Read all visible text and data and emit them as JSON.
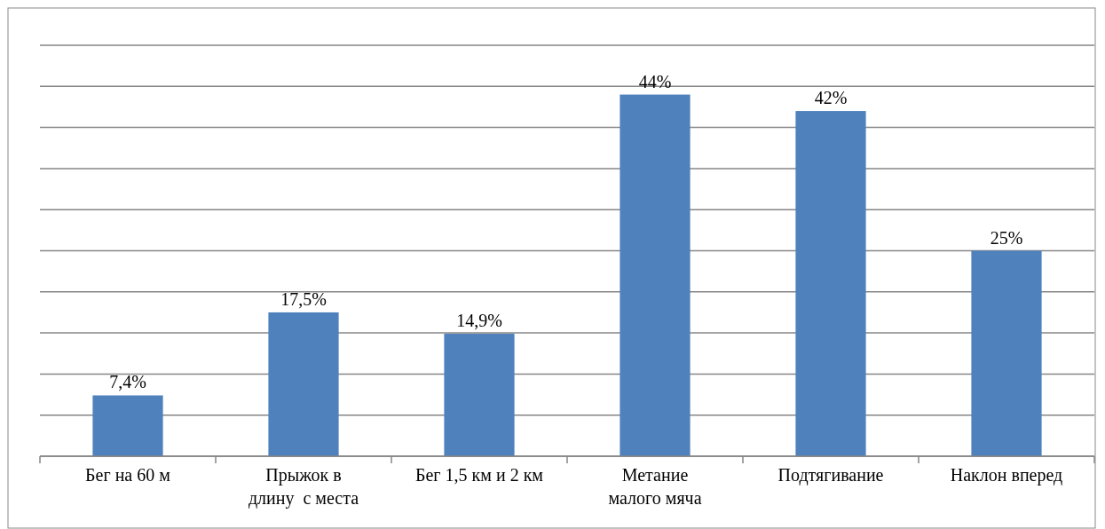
{
  "chart_data": {
    "type": "bar",
    "categories": [
      "Бег на 60 м",
      "Прыжок в\nдлину  с места",
      "Бег 1,5 км и 2 км",
      "Метание\nмалого мяча",
      "Подтягивание",
      "Наклон вперед"
    ],
    "values": [
      7.4,
      17.5,
      14.9,
      44,
      42,
      25
    ],
    "value_labels": [
      "7,4%",
      "17,5%",
      "14,9%",
      "44%",
      "42%",
      "25%"
    ],
    "color": "#4f81bd",
    "ylim": [
      0,
      50
    ],
    "yticks": [
      {
        "value": 0,
        "label": null
      },
      {
        "value": 5,
        "label": null
      },
      {
        "value": 10,
        "label": null
      },
      {
        "value": 15,
        "label": null
      },
      {
        "value": 20,
        "label": null
      },
      {
        "value": 25,
        "label": null
      },
      {
        "value": 30,
        "label": null
      },
      {
        "value": 35,
        "label": null
      },
      {
        "value": 40,
        "label": null
      },
      {
        "value": 45,
        "label": null
      },
      {
        "value": 50,
        "label": null
      }
    ],
    "grid": "y",
    "tick_labels": "x"
  }
}
